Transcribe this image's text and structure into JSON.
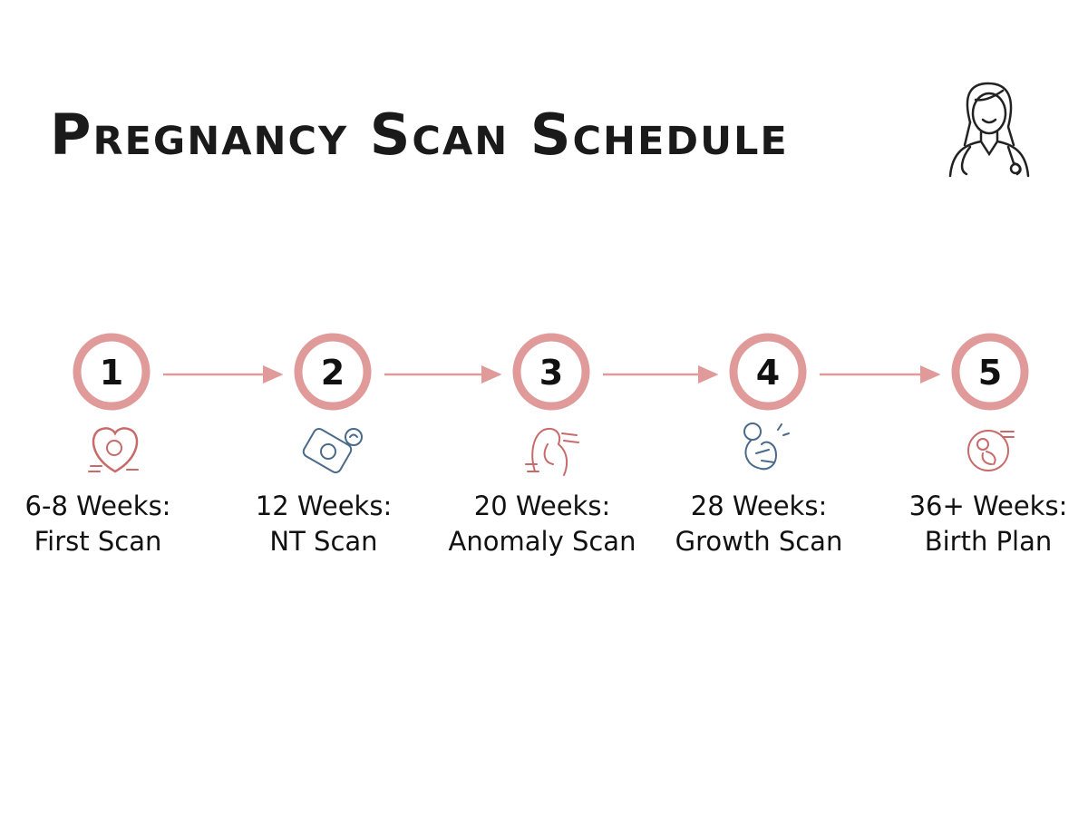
{
  "title": "Pregnancy Scan Schedule",
  "steps": [
    {
      "number": "1",
      "label": [
        "6-8 Weeks:",
        "First Scan"
      ]
    },
    {
      "number": "2",
      "label": [
        "12 Weeks:",
        "NT Scan"
      ]
    },
    {
      "number": "3",
      "label": [
        "20 Weeks:",
        "Anomaly Scan"
      ]
    },
    {
      "number": "4",
      "label": [
        "28 Weeks:",
        "Growth Scan"
      ]
    },
    {
      "number": "5",
      "label": [
        "36+ Weeks:",
        "Birth Plan"
      ]
    }
  ]
}
